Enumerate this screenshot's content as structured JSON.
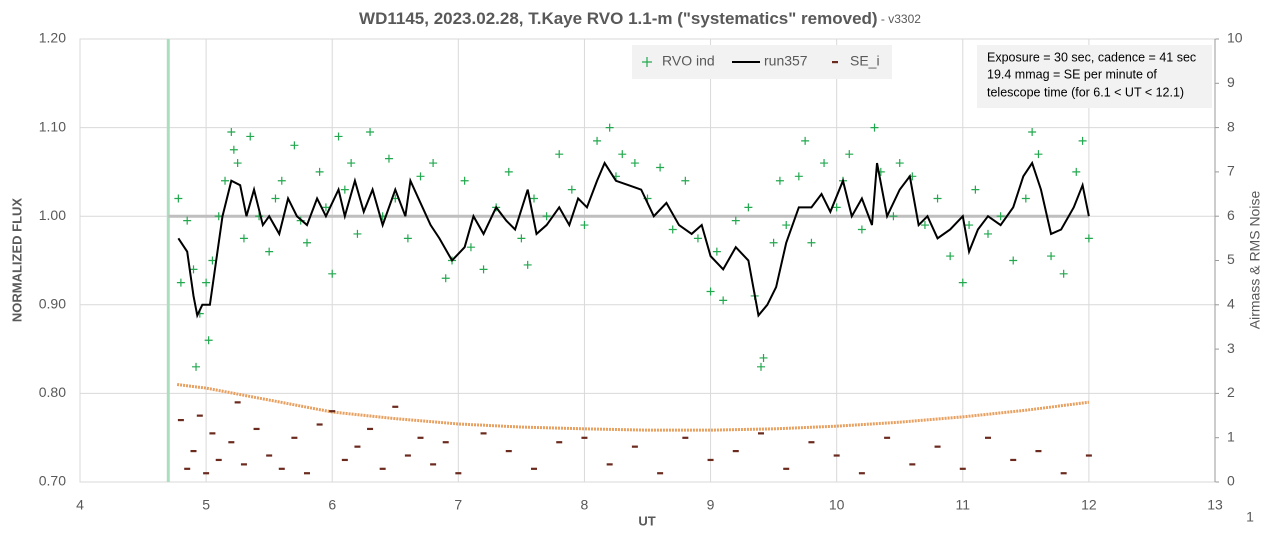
{
  "chart_data": {
    "type": "scatter",
    "title": "WD1145, 2023.02.28, T.Kaye RVO 1.1-m (\"systematics\" removed)",
    "subtitle": " - v3302",
    "xlabel": "UT",
    "ylabel": "NORMALIZED FLUX",
    "y2label": "Airmass & RMS Noise",
    "annotation": [
      "Exposure = 30 sec, cadence = 41 sec",
      "19.4 mmag = SE per minute of",
      "telescope time  (for 6.1 < UT < 12.1)"
    ],
    "corner_label": "1",
    "xlim": [
      4,
      13
    ],
    "xticks": [
      4,
      5,
      6,
      7,
      8,
      9,
      10,
      11,
      12,
      13
    ],
    "ylim": [
      0.7,
      1.2
    ],
    "yticks": [
      {
        "value": 0.7,
        "label": "0.70"
      },
      {
        "value": 0.8,
        "label": "0.80"
      },
      {
        "value": 0.9,
        "label": "0.90"
      },
      {
        "value": 1.0,
        "label": "1.00"
      },
      {
        "value": 1.1,
        "label": "1.10"
      },
      {
        "value": 1.2,
        "label": "1.20"
      }
    ],
    "y2lim": [
      0,
      10
    ],
    "y2ticks": [
      0,
      1,
      2,
      3,
      4,
      5,
      6,
      7,
      8,
      9,
      10
    ],
    "grid": true,
    "vline_x": 4.7,
    "vline_color": "#a9dfbf",
    "hline_y": 1.0,
    "hline_color": "#bfbfbf",
    "series": [
      {
        "name": "RVO ind",
        "color": "#22a94f",
        "mark": "plus",
        "x": [
          4.78,
          4.8,
          4.85,
          4.9,
          4.92,
          4.95,
          5.0,
          5.02,
          5.05,
          5.1,
          5.15,
          5.2,
          5.22,
          5.25,
          5.3,
          5.35,
          5.42,
          5.5,
          5.55,
          5.6,
          5.7,
          5.75,
          5.8,
          5.9,
          5.95,
          6.0,
          6.05,
          6.1,
          6.15,
          6.2,
          6.3,
          6.4,
          6.45,
          6.5,
          6.6,
          6.7,
          6.8,
          6.9,
          6.95,
          7.05,
          7.1,
          7.2,
          7.3,
          7.4,
          7.5,
          7.55,
          7.6,
          7.7,
          7.8,
          7.9,
          8.0,
          8.1,
          8.2,
          8.25,
          8.3,
          8.4,
          8.5,
          8.6,
          8.7,
          8.8,
          8.9,
          9.0,
          9.05,
          9.1,
          9.2,
          9.3,
          9.35,
          9.4,
          9.42,
          9.5,
          9.55,
          9.6,
          9.7,
          9.75,
          9.8,
          9.9,
          10.0,
          10.05,
          10.1,
          10.2,
          10.3,
          10.35,
          10.45,
          10.5,
          10.6,
          10.7,
          10.8,
          10.9,
          11.0,
          11.05,
          11.1,
          11.2,
          11.3,
          11.4,
          11.5,
          11.55,
          11.6,
          11.7,
          11.8,
          11.9,
          11.95,
          12.0
        ],
        "values": [
          1.02,
          0.925,
          0.995,
          0.94,
          0.83,
          0.89,
          0.925,
          0.86,
          0.95,
          1.0,
          1.04,
          1.095,
          1.075,
          1.06,
          0.975,
          1.09,
          1.0,
          0.96,
          1.02,
          1.04,
          1.08,
          0.995,
          0.97,
          1.05,
          1.01,
          0.935,
          1.09,
          1.03,
          1.06,
          0.98,
          1.095,
          1.0,
          1.065,
          1.02,
          0.975,
          1.045,
          1.06,
          0.93,
          0.95,
          1.04,
          0.965,
          0.94,
          1.01,
          1.05,
          0.975,
          0.945,
          1.02,
          1.0,
          1.07,
          1.03,
          0.99,
          1.085,
          1.1,
          1.045,
          1.07,
          1.06,
          1.02,
          1.055,
          0.985,
          1.04,
          0.975,
          0.915,
          0.96,
          0.905,
          0.995,
          1.01,
          0.91,
          0.83,
          0.84,
          0.97,
          1.04,
          0.99,
          1.045,
          1.085,
          0.97,
          1.06,
          1.01,
          1.04,
          1.07,
          0.985,
          1.1,
          1.05,
          1.0,
          1.06,
          1.045,
          0.99,
          1.02,
          0.955,
          0.925,
          0.99,
          1.03,
          0.98,
          1.0,
          0.95,
          1.02,
          1.095,
          1.07,
          0.955,
          0.935,
          1.05,
          1.085,
          0.975
        ]
      },
      {
        "name": "run357",
        "color": "#000000",
        "mark": "line",
        "x": [
          4.78,
          4.85,
          4.9,
          4.93,
          4.97,
          5.03,
          5.08,
          5.13,
          5.2,
          5.27,
          5.32,
          5.38,
          5.45,
          5.5,
          5.58,
          5.65,
          5.72,
          5.8,
          5.88,
          5.95,
          6.05,
          6.1,
          6.18,
          6.25,
          6.32,
          6.4,
          6.5,
          6.58,
          6.62,
          6.7,
          6.78,
          6.85,
          6.95,
          7.05,
          7.12,
          7.2,
          7.3,
          7.38,
          7.45,
          7.55,
          7.62,
          7.7,
          7.8,
          7.88,
          7.95,
          8.02,
          8.1,
          8.16,
          8.25,
          8.35,
          8.45,
          8.55,
          8.65,
          8.75,
          8.85,
          8.93,
          9.0,
          9.1,
          9.2,
          9.3,
          9.38,
          9.45,
          9.52,
          9.6,
          9.7,
          9.8,
          9.88,
          9.95,
          10.05,
          10.12,
          10.2,
          10.28,
          10.32,
          10.4,
          10.5,
          10.58,
          10.65,
          10.72,
          10.8,
          10.9,
          11.0,
          11.05,
          11.12,
          11.2,
          11.3,
          11.4,
          11.48,
          11.55,
          11.62,
          11.7,
          11.78,
          11.88,
          11.95,
          12.0
        ],
        "values": [
          0.975,
          0.96,
          0.91,
          0.888,
          0.9,
          0.9,
          0.95,
          1.0,
          1.04,
          1.035,
          1.0,
          1.03,
          0.99,
          1.0,
          0.98,
          1.02,
          1.0,
          0.99,
          1.02,
          1.0,
          1.03,
          1.0,
          1.04,
          1.005,
          1.03,
          0.99,
          1.03,
          1.0,
          1.04,
          1.015,
          0.99,
          0.975,
          0.95,
          0.965,
          1.0,
          0.98,
          1.01,
          0.995,
          0.985,
          1.03,
          0.98,
          0.99,
          1.01,
          0.99,
          1.02,
          1.01,
          1.04,
          1.06,
          1.04,
          1.035,
          1.03,
          1.0,
          1.015,
          0.99,
          0.98,
          0.99,
          0.955,
          0.94,
          0.965,
          0.95,
          0.888,
          0.9,
          0.92,
          0.97,
          1.01,
          1.01,
          1.025,
          1.005,
          1.04,
          1.0,
          1.02,
          0.99,
          1.06,
          1.0,
          1.03,
          1.045,
          0.99,
          1.0,
          0.975,
          0.985,
          1.0,
          0.96,
          0.985,
          1.0,
          0.99,
          1.01,
          1.045,
          1.06,
          1.03,
          0.98,
          0.985,
          1.01,
          1.035,
          1.0
        ]
      },
      {
        "name": "SE_i",
        "color": "#6b2a1e",
        "mark": "dash",
        "axis": "y2",
        "x": [
          4.8,
          4.85,
          4.9,
          4.95,
          5.0,
          5.05,
          5.1,
          5.2,
          5.25,
          5.3,
          5.4,
          5.5,
          5.6,
          5.7,
          5.8,
          5.9,
          6.0,
          6.1,
          6.2,
          6.3,
          6.4,
          6.5,
          6.6,
          6.7,
          6.8,
          6.9,
          7.0,
          7.2,
          7.4,
          7.6,
          7.8,
          8.0,
          8.2,
          8.4,
          8.6,
          8.8,
          9.0,
          9.2,
          9.4,
          9.6,
          9.8,
          10.0,
          10.2,
          10.4,
          10.6,
          10.8,
          11.0,
          11.2,
          11.4,
          11.6,
          11.8,
          12.0
        ],
        "values": [
          1.4,
          0.3,
          0.7,
          1.5,
          0.2,
          1.1,
          0.5,
          0.9,
          1.8,
          0.4,
          1.2,
          0.6,
          0.3,
          1.0,
          0.2,
          1.3,
          1.6,
          0.5,
          0.8,
          1.2,
          0.3,
          1.7,
          0.6,
          1.0,
          0.4,
          0.9,
          0.2,
          1.1,
          0.7,
          0.3,
          0.9,
          1.0,
          0.4,
          0.8,
          0.2,
          1.0,
          0.5,
          0.7,
          1.1,
          0.3,
          0.9,
          0.6,
          0.2,
          1.0,
          0.4,
          0.8,
          0.3,
          1.0,
          0.5,
          0.7,
          0.2,
          0.6
        ]
      }
    ],
    "airmass": {
      "color": "#e8a060",
      "axis": "y2",
      "x": [
        4.77,
        5,
        5.5,
        6,
        6.5,
        7,
        7.5,
        8,
        8.5,
        9,
        9.5,
        10,
        10.5,
        11,
        11.5,
        12
      ],
      "values": [
        2.2,
        2.12,
        1.85,
        1.58,
        1.43,
        1.31,
        1.24,
        1.2,
        1.17,
        1.17,
        1.2,
        1.26,
        1.35,
        1.47,
        1.62,
        1.8
      ]
    }
  }
}
